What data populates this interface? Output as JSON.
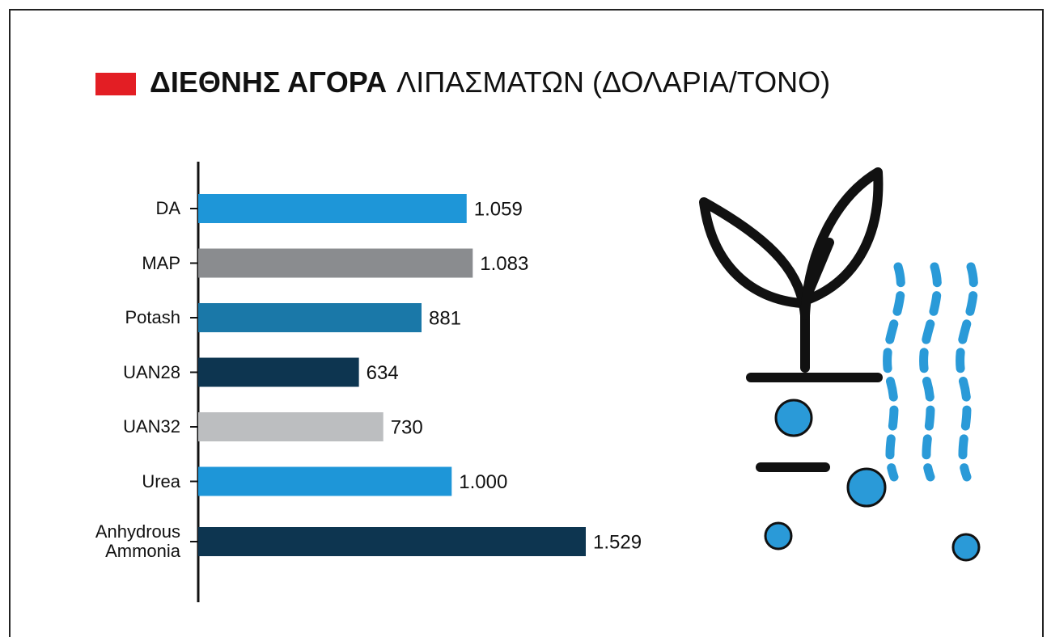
{
  "chart_data": {
    "type": "bar",
    "orientation": "horizontal",
    "title": "ΔΙΕΘΝΗΣ ΑΓΟΡΑ",
    "subtitle": "ΛΙΠΑΣΜΑΤΩΝ (ΔΟΛΑΡΙΑ/ΤΟΝΟ)",
    "categories": [
      "DA",
      "MAP",
      "Potash",
      "UAN28",
      "UAN32",
      "Urea",
      "Anhydrous Ammonia"
    ],
    "values": [
      1059,
      1083,
      881,
      634,
      730,
      1000,
      1529
    ],
    "value_labels": [
      "1.059",
      "1.083",
      "881",
      "634",
      "730",
      "1.000",
      "1.529"
    ],
    "colors": [
      "#1e96d8",
      "#8a8c8f",
      "#1a78a8",
      "#0d3550",
      "#bcbec0",
      "#1e96d8",
      "#0d3550"
    ]
  }
}
